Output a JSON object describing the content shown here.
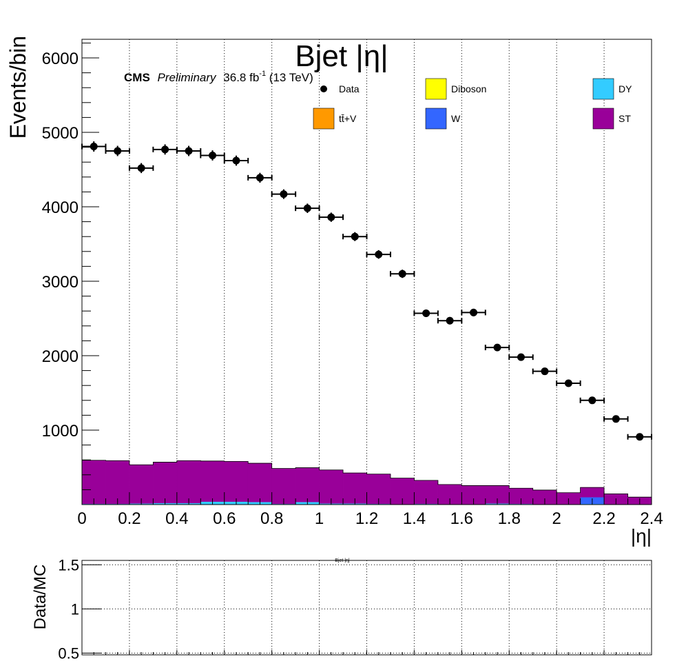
{
  "chart_data": [
    {
      "type": "bar",
      "title": "Bjet |η|",
      "xlabel": "|η|",
      "ylabel": "Events/bin",
      "xlim": [
        0,
        2.4
      ],
      "ylim": [
        0,
        6250
      ],
      "bin_width": 0.1,
      "x_ticks": [
        "0",
        "0.2",
        "0.4",
        "0.6",
        "0.8",
        "1",
        "1.2",
        "1.4",
        "1.6",
        "1.8",
        "2",
        "2.2",
        "2.4"
      ],
      "x_tick_values": [
        0,
        0.2,
        0.4,
        0.6,
        0.8,
        1.0,
        1.2,
        1.4,
        1.6,
        1.8,
        2.0,
        2.2,
        2.4
      ],
      "y_ticks": [
        "1000",
        "2000",
        "3000",
        "4000",
        "5000",
        "6000"
      ],
      "y_tick_values": [
        1000,
        2000,
        3000,
        4000,
        5000,
        6000
      ],
      "grid": true,
      "experiment_label": "CMS",
      "status_label": "Preliminary",
      "lumi_value": "36.8 fb",
      "lumi_exponent": "-1",
      "lumi_energy": " (13 TeV)",
      "legend": [
        {
          "label": "Data",
          "kind": "marker",
          "color": "#000000"
        },
        {
          "label": "Diboson",
          "kind": "box",
          "color": "#ffff00"
        },
        {
          "label": "DY",
          "kind": "box",
          "color": "#33ccff"
        },
        {
          "label": "tt̄+V",
          "kind": "box",
          "color": "#ff9900"
        },
        {
          "label": "W",
          "kind": "box",
          "color": "#3366ff"
        },
        {
          "label": "ST",
          "kind": "box",
          "color": "#990099"
        }
      ],
      "data_points": {
        "name": "Data",
        "x": [
          0.05,
          0.15,
          0.25,
          0.35,
          0.45,
          0.55,
          0.65,
          0.75,
          0.85,
          0.95,
          1.05,
          1.15,
          1.25,
          1.35,
          1.45,
          1.55,
          1.65,
          1.75,
          1.85,
          1.95,
          2.05,
          2.15,
          2.25,
          2.35
        ],
        "y": [
          4810,
          4750,
          4520,
          4770,
          4750,
          4690,
          4620,
          4390,
          4170,
          3980,
          3860,
          3600,
          3360,
          3100,
          2570,
          2470,
          2580,
          2110,
          1980,
          1790,
          1630,
          1400,
          1150,
          910
        ]
      },
      "stack": [
        {
          "name": "DY",
          "color": "#33ccff",
          "values": [
            10,
            10,
            15,
            20,
            20,
            40,
            40,
            35,
            10,
            35,
            15,
            15,
            10,
            5,
            10,
            5,
            5,
            15,
            10,
            5,
            5,
            10,
            5,
            5
          ]
        },
        {
          "name": "W",
          "color": "#3366ff",
          "values": [
            0,
            0,
            0,
            0,
            0,
            0,
            0,
            0,
            0,
            0,
            0,
            0,
            0,
            0,
            0,
            0,
            0,
            0,
            0,
            0,
            0,
            90,
            0,
            0
          ]
        },
        {
          "name": "ST",
          "color": "#990099",
          "values": [
            585,
            580,
            520,
            550,
            570,
            545,
            540,
            520,
            475,
            460,
            450,
            410,
            400,
            350,
            315,
            265,
            250,
            240,
            210,
            190,
            155,
            130,
            140,
            95
          ]
        }
      ]
    },
    {
      "type": "line",
      "title": "Bjet |η|",
      "ylabel": "Data/MC",
      "xlim": [
        0,
        2.4
      ],
      "ylim": [
        0.48,
        1.55
      ],
      "y_ticks": [
        "0.5",
        "1",
        "1.5"
      ],
      "y_tick_values": [
        0.5,
        1.0,
        1.5
      ],
      "grid": true,
      "series": []
    }
  ]
}
